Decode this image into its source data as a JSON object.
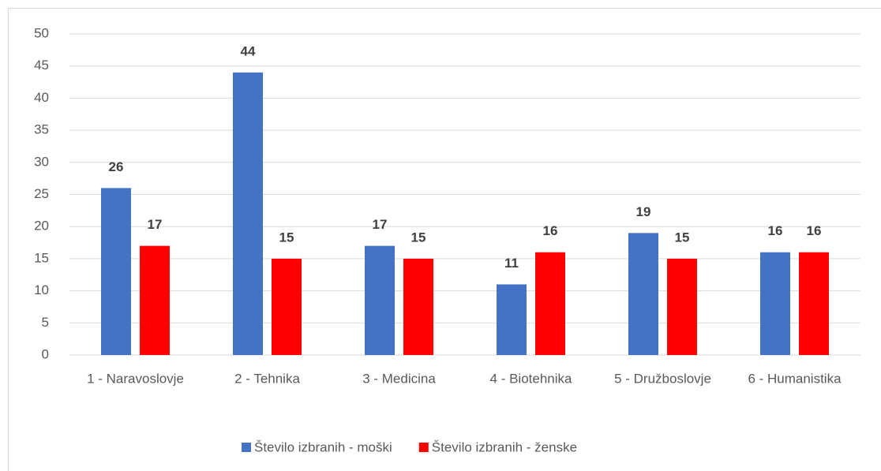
{
  "chart_data": {
    "type": "bar",
    "categories": [
      "1 - Naravoslovje",
      "2 - Tehnika",
      "3 - Medicina",
      "4 - Biotehnika",
      "5 - Družboslovje",
      "6 - Humanistika"
    ],
    "series": [
      {
        "name": "Število izbranih - moški",
        "color": "#4472c4",
        "values": [
          26,
          44,
          17,
          11,
          19,
          16
        ]
      },
      {
        "name": "Število izbranih - ženske",
        "color": "#ff0000",
        "values": [
          17,
          15,
          15,
          16,
          15,
          16
        ]
      }
    ],
    "ylim": [
      0,
      50
    ],
    "yticks": [
      0,
      5,
      10,
      15,
      20,
      25,
      30,
      35,
      40,
      45,
      50
    ],
    "grid": true,
    "legend": "bottom"
  }
}
